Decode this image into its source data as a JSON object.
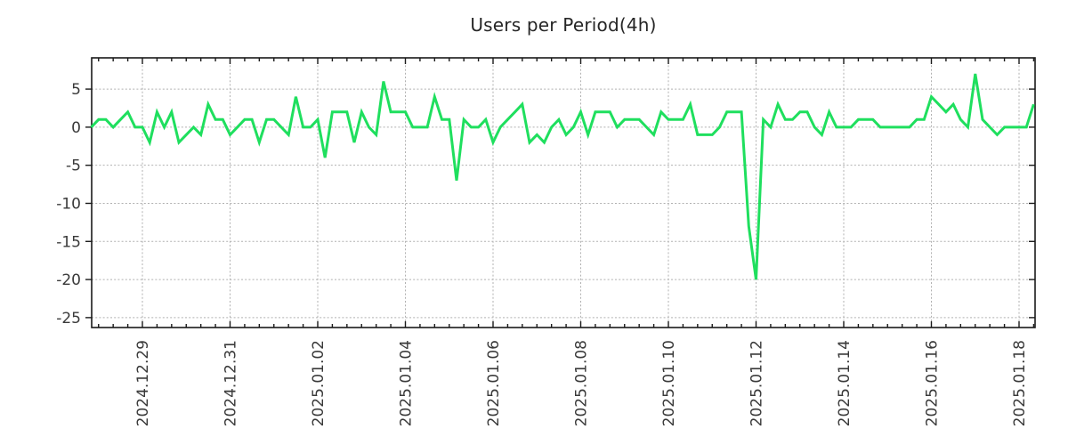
{
  "chart_data": {
    "type": "line",
    "title": "Users per Period(4h)",
    "period": "4h",
    "grid": true,
    "legend": "none",
    "line_color": "#1fdf5e",
    "grid_color": "#b0b0b0",
    "axis_color": "#1a1a1a",
    "x_tick_labels": [
      "2024.12.29",
      "2024.12.31",
      "2025.01.02",
      "2025.01.04",
      "2025.01.06",
      "2025.01.08",
      "2025.01.10",
      "2025.01.12",
      "2025.01.14",
      "2025.01.16",
      "2025.01.18"
    ],
    "y_tick_labels": [
      "5",
      "0",
      "-5",
      "-10",
      "-15",
      "-20",
      "-25"
    ],
    "y_ticks": [
      5,
      0,
      -5,
      -10,
      -15,
      -20,
      -25
    ],
    "ylim": [
      -26.3,
      9.1
    ],
    "points_per_day": 6,
    "first_gridline_point_index": 7,
    "points_per_gridline_interval": 12,
    "values": [
      0,
      1,
      1,
      0,
      1,
      2,
      0,
      0,
      -2,
      2,
      0,
      2,
      -2,
      -1,
      0,
      -1,
      3,
      1,
      1,
      -1,
      0,
      1,
      1,
      -2,
      1,
      1,
      0,
      -1,
      4,
      0,
      0,
      1,
      -4,
      2,
      2,
      2,
      -2,
      2,
      0,
      -1,
      6,
      2,
      2,
      2,
      0,
      0,
      0,
      4,
      1,
      1,
      -7,
      1,
      0,
      0,
      1,
      -2,
      0,
      1,
      2,
      3,
      -2,
      -1,
      -2,
      0,
      1,
      -1,
      0,
      2,
      -1,
      2,
      2,
      2,
      0,
      1,
      1,
      1,
      0,
      -1,
      2,
      1,
      1,
      1,
      3,
      -1,
      -1,
      -1,
      0,
      2,
      2,
      2,
      -13,
      -20,
      1,
      0,
      3,
      1,
      1,
      2,
      2,
      0,
      -1,
      2,
      0,
      0,
      0,
      1,
      1,
      1,
      0,
      0,
      0,
      0,
      0,
      1,
      1,
      4,
      3,
      2,
      3,
      1,
      0,
      7,
      1,
      0,
      -1,
      0,
      0,
      0,
      0,
      3
    ]
  }
}
